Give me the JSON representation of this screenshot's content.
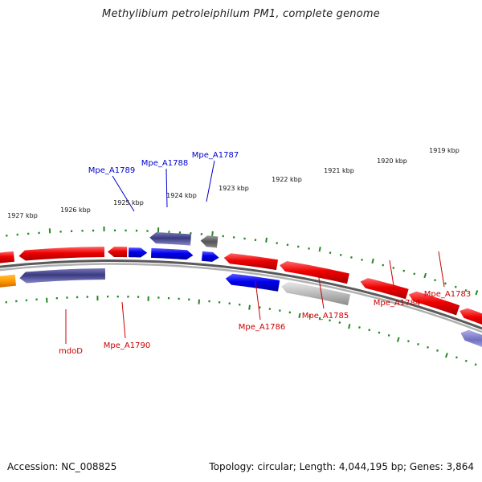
{
  "title": "Methylibium petroleiphilum PM1, complete genome",
  "footer": {
    "accession": "Accession: NC_008825",
    "summary": "Topology: circular; Length: 4,044,195 bp; Genes: 3,864"
  },
  "scale_labels": [
    "1927 kbp",
    "1926 kbp",
    "1925 kbp",
    "1924 kbp",
    "1923 kbp",
    "1922 kbp",
    "1921 kbp",
    "1920 kbp",
    "1919 kbp"
  ],
  "gene_labels_top": [
    "Mpe_A1789",
    "Mpe_A1788",
    "Mpe_A1787"
  ],
  "gene_labels_bottom": [
    "mdoD",
    "Mpe_A1790",
    "Mpe_A1786",
    "Mpe_A1785",
    "Mpe_A1784",
    "Mpe_A1783"
  ],
  "colors": {
    "forward_label": "#0000cc",
    "reverse_label": "#cc0000",
    "cds_red": "#ee0000",
    "cds_blue": "#0000ee",
    "cds_navy": "#3a3a80",
    "cds_gray": "#aaaaaa",
    "cds_orange": "#ff9900",
    "tick": "#228822",
    "backbone": "#888888"
  }
}
